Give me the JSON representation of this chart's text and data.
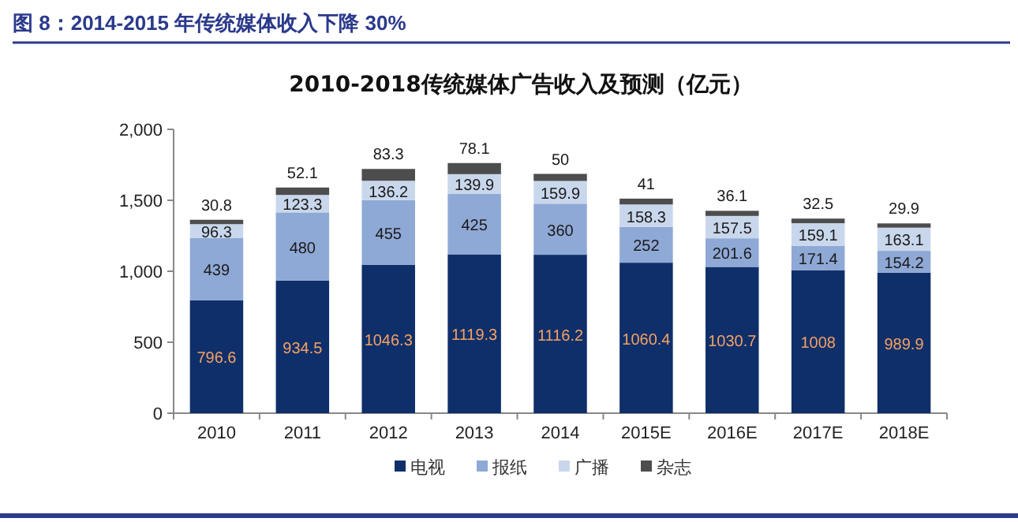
{
  "chart_data": {
    "type": "bar",
    "title": "图 8：2014-2015 年传统媒体收入下降 30%",
    "subtitle": "2010-2018传统媒体广告收入及预测（亿元）",
    "categories": [
      "2010",
      "2011",
      "2012",
      "2013",
      "2014",
      "2015E",
      "2016E",
      "2017E",
      "2018E"
    ],
    "stacked": true,
    "data_labels": true,
    "legend": "bottom",
    "grid": false,
    "ylim": [
      0,
      2000
    ],
    "yticks": [
      {
        "value": 0,
        "label": "0"
      },
      {
        "value": 500,
        "label": "500"
      },
      {
        "value": 1000,
        "label": "1,000"
      },
      {
        "value": 1500,
        "label": "1,500"
      },
      {
        "value": 2000,
        "label": "2,000"
      }
    ],
    "series": [
      {
        "name": "电视",
        "color": "#0f2f6b",
        "values": [
          796.6,
          934.5,
          1046.3,
          1119.3,
          1116.2,
          1060.4,
          1030.7,
          1008,
          989.9
        ]
      },
      {
        "name": "报纸",
        "color": "#8fa9d6",
        "values": [
          439,
          480,
          455,
          425,
          360,
          252,
          201.6,
          171.4,
          154.2
        ]
      },
      {
        "name": "广播",
        "color": "#c9d7ec",
        "values": [
          96.3,
          123.3,
          136.2,
          139.9,
          159.9,
          158.3,
          157.5,
          159.1,
          163.1
        ]
      },
      {
        "name": "杂志",
        "color": "#4d4d4d",
        "values": [
          30.8,
          52.1,
          83.3,
          78.1,
          50,
          41,
          36.1,
          32.5,
          29.9
        ]
      }
    ]
  }
}
